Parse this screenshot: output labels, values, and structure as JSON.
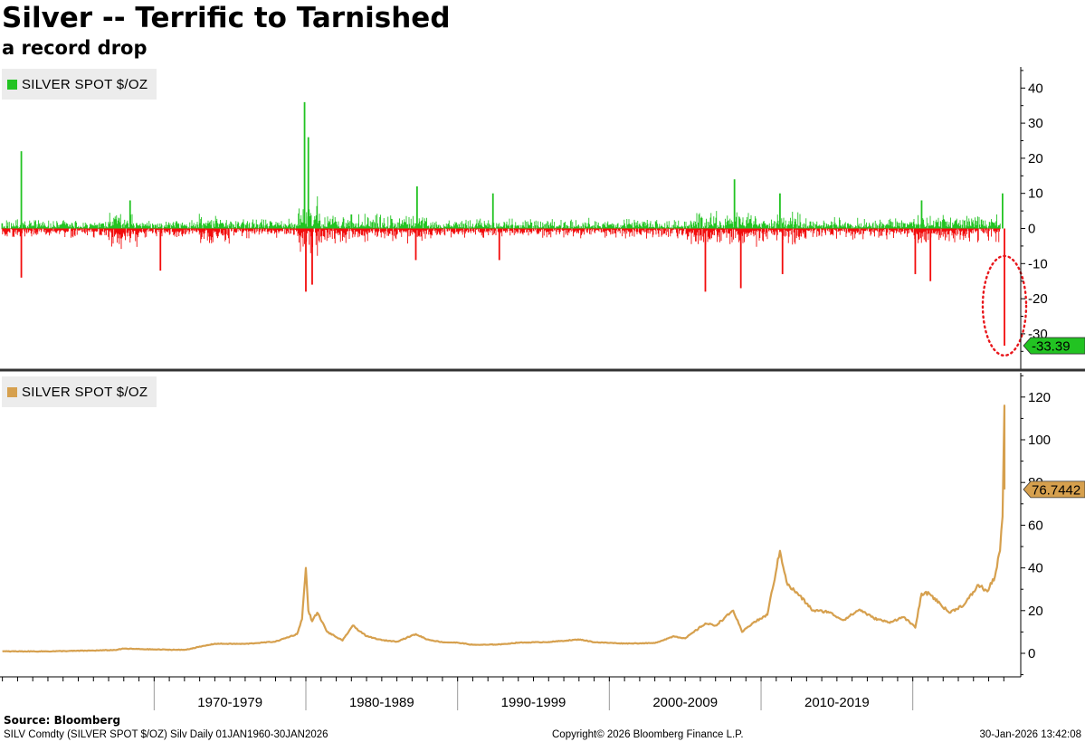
{
  "header": {
    "title": "Silver -- Terrific to Tarnished",
    "subtitle": "a record drop"
  },
  "footer": {
    "source_label": "Source: Bloomberg",
    "description": "SILV Comdty (SILVER SPOT $/OZ) Silv Daily 01JAN1960-30JAN2026",
    "copyright": "Copyright© 2026 Bloomberg Finance L.P.",
    "timestamp": "30-Jan-2026 13:42:08"
  },
  "colors": {
    "up": "#22c322",
    "down": "#f20c0c",
    "price_line": "#d6a04e",
    "last_change_tag": "#22c322",
    "last_price_tag": "#d6a04e",
    "highlight_ellipse": "#e8161b"
  },
  "chart_data": [
    {
      "type": "bar",
      "legend": "SILVER SPOT $/OZ",
      "legend_color": "#22c322",
      "ylim": [
        -40,
        45
      ],
      "yticks": [
        40,
        30,
        20,
        10,
        0,
        -10,
        -20,
        -30
      ],
      "x_range": [
        "1960-01-01",
        "2026-01-30"
      ],
      "last_value_label": "-33.39",
      "highlight": "red dotted ellipse around the final bar",
      "notable_spikes": [
        {
          "x": "1961-04",
          "y": 22
        },
        {
          "x": "1961-04",
          "y": -14
        },
        {
          "x": "1968-06",
          "y": 8
        },
        {
          "x": "1970-06",
          "y": -12
        },
        {
          "x": "1979-12",
          "y": 36
        },
        {
          "x": "1980-03",
          "y": 26
        },
        {
          "x": "1980-01",
          "y": -18
        },
        {
          "x": "1980-06",
          "y": -16
        },
        {
          "x": "1983-01",
          "y": 4
        },
        {
          "x": "1987-05",
          "y": 12
        },
        {
          "x": "1987-04",
          "y": -9
        },
        {
          "x": "1992-05",
          "y": 10
        },
        {
          "x": "1992-10",
          "y": -9
        },
        {
          "x": "2006-05",
          "y": -18
        },
        {
          "x": "2008-04",
          "y": 14
        },
        {
          "x": "2008-09",
          "y": -17
        },
        {
          "x": "2011-04",
          "y": 10
        },
        {
          "x": "2011-06",
          "y": -13
        },
        {
          "x": "2013-04",
          "y": 2
        },
        {
          "x": "2020-03",
          "y": -13
        },
        {
          "x": "2020-08",
          "y": 8
        },
        {
          "x": "2021-03",
          "y": -15
        },
        {
          "x": "2025-12",
          "y": 10
        },
        {
          "x": "2026-01-30",
          "y": -33.39
        }
      ]
    },
    {
      "type": "line",
      "legend": "SILVER SPOT $/OZ",
      "legend_color": "#d6a04e",
      "ylim": [
        -10,
        130
      ],
      "yticks": [
        120,
        100,
        80,
        60,
        40,
        20,
        0
      ],
      "x_range": [
        "1960-01-01",
        "2026-01-30"
      ],
      "last_value_label": "76.7442",
      "x_period_labels": [
        "1970-1979",
        "1980-1989",
        "1990-1999",
        "2000-2009",
        "2010-2019"
      ],
      "x": [
        "1960-01",
        "1963-01",
        "1966-01",
        "1967-06",
        "1968-01",
        "1970-01",
        "1972-01",
        "1974-01",
        "1976-01",
        "1978-01",
        "1979-06",
        "1979-10",
        "1980-01",
        "1980-03",
        "1980-06",
        "1980-10",
        "1981-06",
        "1982-06",
        "1983-02",
        "1984-01",
        "1985-01",
        "1986-01",
        "1987-04",
        "1988-01",
        "1989-01",
        "1990-01",
        "1991-01",
        "1992-01",
        "1993-01",
        "1994-01",
        "1996-01",
        "1998-02",
        "1999-01",
        "2001-01",
        "2003-01",
        "2004-04",
        "2005-01",
        "2006-05",
        "2007-01",
        "2008-03",
        "2008-10",
        "2009-06",
        "2010-06",
        "2011-04",
        "2011-10",
        "2012-06",
        "2013-06",
        "2014-06",
        "2015-06",
        "2016-07",
        "2017-06",
        "2018-06",
        "2019-06",
        "2020-03",
        "2020-08",
        "2021-02",
        "2022-06",
        "2023-06",
        "2024-05",
        "2024-12",
        "2025-06",
        "2025-10",
        "2025-12",
        "2026-01-15",
        "2026-01-29",
        "2026-01-30"
      ],
      "values": [
        0.91,
        0.92,
        1.29,
        1.55,
        2.2,
        1.8,
        1.6,
        4.5,
        4.4,
        5.5,
        9,
        16,
        40,
        20,
        15,
        19,
        10,
        6,
        13,
        8,
        6.2,
        5.5,
        9,
        6.5,
        5.2,
        5,
        4,
        4,
        4.3,
        5,
        5.3,
        6.5,
        5.2,
        4.6,
        4.8,
        8,
        7,
        14,
        13,
        20,
        10,
        14,
        18,
        48,
        32,
        28,
        20,
        19.5,
        15.5,
        20.5,
        16.5,
        14.5,
        17,
        12,
        28,
        28,
        19,
        23,
        32,
        29,
        36,
        48,
        64,
        100,
        116,
        76.7442
      ]
    }
  ]
}
